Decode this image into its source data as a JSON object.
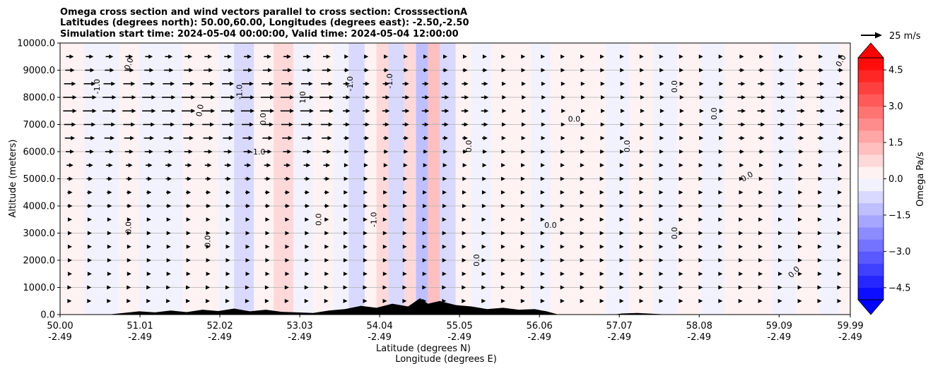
{
  "chart_data": {
    "type": "heatmap",
    "title_lines": [
      "Omega cross section and wind vectors parallel to cross section: CrosssectionA",
      "Latitudes (degrees north): 50.00,60.00, Longitudes (degrees east): -2.50,-2.50",
      "Simulation start time: 2024-05-04 00:00:00, Valid time: 2024-05-04 12:00:00"
    ],
    "ylabel": "Altitude (meters)",
    "xlabel_lat": "Latitude (degrees N)",
    "xlabel_lon": "Longitude (degrees E)",
    "ylim": [
      0,
      10000
    ],
    "y_ticks": [
      "0.0",
      "1000.0",
      "2000.0",
      "3000.0",
      "4000.0",
      "5000.0",
      "6000.0",
      "7000.0",
      "8000.0",
      "9000.0",
      "10000.0"
    ],
    "x_range": [
      50.0,
      59.99
    ],
    "x_ticks": [
      {
        "lat": "50.00",
        "lon": "-2.49"
      },
      {
        "lat": "51.01",
        "lon": "-2.49"
      },
      {
        "lat": "52.02",
        "lon": "-2.49"
      },
      {
        "lat": "53.03",
        "lon": "-2.49"
      },
      {
        "lat": "54.04",
        "lon": "-2.49"
      },
      {
        "lat": "55.05",
        "lon": "-2.49"
      },
      {
        "lat": "56.06",
        "lon": "-2.49"
      },
      {
        "lat": "57.07",
        "lon": "-2.49"
      },
      {
        "lat": "58.08",
        "lon": "-2.49"
      },
      {
        "lat": "59.09",
        "lon": "-2.49"
      },
      {
        "lat": "59.99",
        "lon": "-2.49"
      }
    ],
    "grid": "horizontal",
    "colorbar": {
      "label": "Omega Pa/s",
      "range": [
        -5.0,
        5.0
      ],
      "levels": 20,
      "extend": "both",
      "tick_values": [
        -4.5,
        -3.0,
        -1.5,
        0.0,
        1.5,
        3.0,
        4.5
      ],
      "tick_labels": [
        "−4.5",
        "−3.0",
        "−1.5",
        "0.0",
        "1.5",
        "3.0",
        "4.5"
      ],
      "low_color": "#0000ff",
      "high_color": "#ff0000"
    },
    "vector_key": {
      "label": "25 m/s",
      "speed": 25
    },
    "contour_labels": [
      "0.0",
      "-1.0",
      "1.0"
    ],
    "omega_bands": [
      {
        "lat": 50.0,
        "value": 0.25
      },
      {
        "lat": 50.1,
        "value": 0.45
      },
      {
        "lat": 50.3,
        "value": -0.3
      },
      {
        "lat": 50.55,
        "value": -0.4
      },
      {
        "lat": 50.75,
        "value": 0.3
      },
      {
        "lat": 51.0,
        "value": -0.35
      },
      {
        "lat": 51.3,
        "value": -0.5
      },
      {
        "lat": 51.55,
        "value": 0.35
      },
      {
        "lat": 51.8,
        "value": 0.45
      },
      {
        "lat": 52.0,
        "value": -0.3
      },
      {
        "lat": 52.2,
        "value": -0.55
      },
      {
        "lat": 52.45,
        "value": 0.3
      },
      {
        "lat": 52.7,
        "value": 0.5
      },
      {
        "lat": 52.95,
        "value": -0.3
      },
      {
        "lat": 53.2,
        "value": 0.3
      },
      {
        "lat": 53.45,
        "value": -0.5
      },
      {
        "lat": 53.65,
        "value": -0.9
      },
      {
        "lat": 53.85,
        "value": 0.4
      },
      {
        "lat": 54.0,
        "value": 0.6
      },
      {
        "lat": 54.15,
        "value": -0.6
      },
      {
        "lat": 54.35,
        "value": 0.9
      },
      {
        "lat": 54.5,
        "value": -1.4
      },
      {
        "lat": 54.65,
        "value": 1.3
      },
      {
        "lat": 54.8,
        "value": -0.8
      },
      {
        "lat": 55.0,
        "value": 0.4
      },
      {
        "lat": 55.2,
        "value": -0.4
      },
      {
        "lat": 55.45,
        "value": 0.3
      },
      {
        "lat": 55.7,
        "value": 0.25
      },
      {
        "lat": 55.95,
        "value": -0.3
      },
      {
        "lat": 56.2,
        "value": 0.2
      },
      {
        "lat": 56.55,
        "value": 0.25
      },
      {
        "lat": 56.9,
        "value": -0.3
      },
      {
        "lat": 57.2,
        "value": 0.2
      },
      {
        "lat": 57.5,
        "value": -0.25
      },
      {
        "lat": 57.8,
        "value": 0.2
      },
      {
        "lat": 58.1,
        "value": -0.2
      },
      {
        "lat": 58.4,
        "value": 0.2
      },
      {
        "lat": 58.7,
        "value": 0.15
      },
      {
        "lat": 59.0,
        "value": -0.3
      },
      {
        "lat": 59.3,
        "value": 0.2
      },
      {
        "lat": 59.6,
        "value": -0.25
      },
      {
        "lat": 59.85,
        "value": 0.2
      },
      {
        "lat": 59.99,
        "value": 0.2
      }
    ],
    "wind_profile": [
      {
        "alt": 9500,
        "speed": 9
      },
      {
        "alt": 9000,
        "speed": 11
      },
      {
        "alt": 8500,
        "speed": 14
      },
      {
        "alt": 8000,
        "speed": 16
      },
      {
        "alt": 7500,
        "speed": 16
      },
      {
        "alt": 7000,
        "speed": 14
      },
      {
        "alt": 6500,
        "speed": 12
      },
      {
        "alt": 6000,
        "speed": 10
      },
      {
        "alt": 5500,
        "speed": 8
      },
      {
        "alt": 5000,
        "speed": 7
      },
      {
        "alt": 4500,
        "speed": 6
      },
      {
        "alt": 4000,
        "speed": 6
      },
      {
        "alt": 3500,
        "speed": 5
      },
      {
        "alt": 3000,
        "speed": 5
      },
      {
        "alt": 2500,
        "speed": 5
      },
      {
        "alt": 2000,
        "speed": 5
      },
      {
        "alt": 1500,
        "speed": 5
      },
      {
        "alt": 1000,
        "speed": 4
      },
      {
        "alt": 500,
        "speed": 4
      }
    ],
    "terrain": [
      {
        "lat": 50.0,
        "alt": 0
      },
      {
        "lat": 50.6,
        "alt": 0
      },
      {
        "lat": 50.8,
        "alt": 60
      },
      {
        "lat": 51.0,
        "alt": 120
      },
      {
        "lat": 51.2,
        "alt": 80
      },
      {
        "lat": 51.4,
        "alt": 150
      },
      {
        "lat": 51.6,
        "alt": 90
      },
      {
        "lat": 51.8,
        "alt": 180
      },
      {
        "lat": 52.0,
        "alt": 130
      },
      {
        "lat": 52.2,
        "alt": 220
      },
      {
        "lat": 52.4,
        "alt": 120
      },
      {
        "lat": 52.6,
        "alt": 180
      },
      {
        "lat": 52.8,
        "alt": 100
      },
      {
        "lat": 53.0,
        "alt": 80
      },
      {
        "lat": 53.2,
        "alt": 60
      },
      {
        "lat": 53.4,
        "alt": 150
      },
      {
        "lat": 53.6,
        "alt": 200
      },
      {
        "lat": 53.8,
        "alt": 320
      },
      {
        "lat": 54.0,
        "alt": 250
      },
      {
        "lat": 54.2,
        "alt": 400
      },
      {
        "lat": 54.4,
        "alt": 300
      },
      {
        "lat": 54.55,
        "alt": 600
      },
      {
        "lat": 54.65,
        "alt": 400
      },
      {
        "lat": 54.8,
        "alt": 500
      },
      {
        "lat": 55.0,
        "alt": 350
      },
      {
        "lat": 55.2,
        "alt": 300
      },
      {
        "lat": 55.4,
        "alt": 200
      },
      {
        "lat": 55.6,
        "alt": 250
      },
      {
        "lat": 55.8,
        "alt": 180
      },
      {
        "lat": 56.0,
        "alt": 200
      },
      {
        "lat": 56.15,
        "alt": 120
      },
      {
        "lat": 56.3,
        "alt": 0
      },
      {
        "lat": 57.0,
        "alt": 0
      },
      {
        "lat": 57.1,
        "alt": 40
      },
      {
        "lat": 57.3,
        "alt": 60
      },
      {
        "lat": 57.5,
        "alt": 30
      },
      {
        "lat": 57.7,
        "alt": 0
      },
      {
        "lat": 59.99,
        "alt": 0
      }
    ]
  }
}
